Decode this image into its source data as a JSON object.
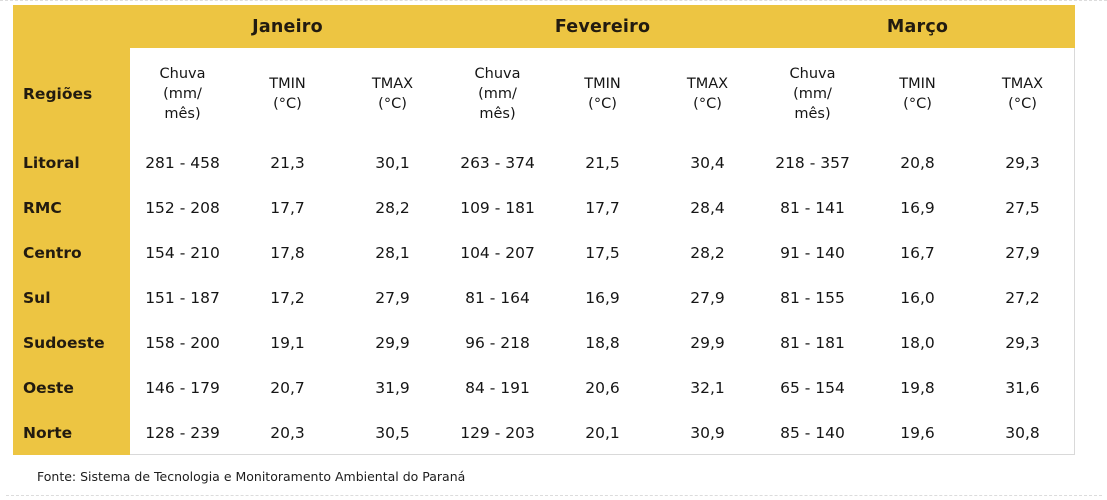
{
  "chart_data": {
    "type": "table",
    "row_header_label": "Regiões",
    "month_groups": [
      "Janeiro",
      "Fevereiro",
      "Março"
    ],
    "sub_columns": [
      "Chuva\n(mm/\nmês)",
      "TMIN\n(°C)",
      "TMAX\n(°C)"
    ],
    "rows": [
      {
        "region": "Litoral",
        "values": [
          "281 - 458",
          "21,3",
          "30,1",
          "263 - 374",
          "21,5",
          "30,4",
          "218 - 357",
          "20,8",
          "29,3"
        ]
      },
      {
        "region": "RMC",
        "values": [
          "152 - 208",
          "17,7",
          "28,2",
          "109 - 181",
          "17,7",
          "28,4",
          "81 - 141",
          "16,9",
          "27,5"
        ]
      },
      {
        "region": "Centro",
        "values": [
          "154 - 210",
          "17,8",
          "28,1",
          "104 - 207",
          "17,5",
          "28,2",
          "91 - 140",
          "16,7",
          "27,9"
        ]
      },
      {
        "region": "Sul",
        "values": [
          "151 - 187",
          "17,2",
          "27,9",
          "81 - 164",
          "16,9",
          "27,9",
          "81 - 155",
          "16,0",
          "27,2"
        ]
      },
      {
        "region": "Sudoeste",
        "values": [
          "158 - 200",
          "19,1",
          "29,9",
          "96 - 218",
          "18,8",
          "29,9",
          "81 - 181",
          "18,0",
          "29,3"
        ]
      },
      {
        "region": "Oeste",
        "values": [
          "146 - 179",
          "20,7",
          "31,9",
          "84 - 191",
          "20,6",
          "32,1",
          "65 - 154",
          "19,8",
          "31,6"
        ]
      },
      {
        "region": "Norte",
        "values": [
          "128 - 239",
          "20,3",
          "30,5",
          "129 - 203",
          "20,1",
          "30,9",
          "85 - 140",
          "19,6",
          "30,8"
        ]
      }
    ]
  },
  "footer": {
    "source": "Fonte: Sistema de Tecnologia e Monitoramento Ambiental do Paraná"
  },
  "colors": {
    "header_bg": "#EDC542",
    "header_text": "#221B10",
    "body_text": "#151515",
    "body_border": "#D9D9D9"
  }
}
